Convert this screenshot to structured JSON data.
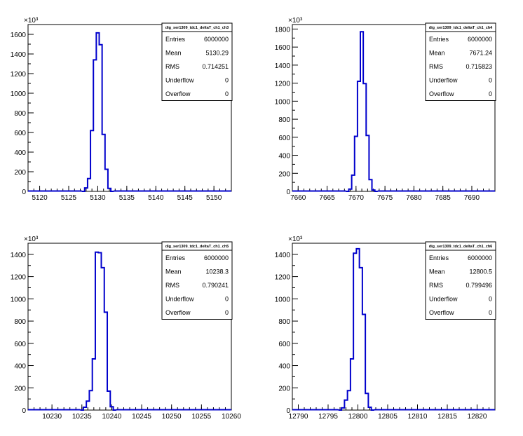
{
  "chart_data": [
    {
      "type": "bar",
      "title": "",
      "exponent_label": "×10³",
      "xlim": [
        5118,
        5153
      ],
      "ylim": [
        0,
        1700
      ],
      "xticks": [
        "5120",
        "5125",
        "5130",
        "5135",
        "5140",
        "5145",
        "5150"
      ],
      "yticks": [
        "0",
        "200",
        "400",
        "600",
        "800",
        "1000",
        "1200",
        "1400",
        "1600"
      ],
      "bin_width": 0.5,
      "bins": [
        {
          "x": 5127.5,
          "y": 0
        },
        {
          "x": 5128.0,
          "y": 35
        },
        {
          "x": 5128.5,
          "y": 130
        },
        {
          "x": 5129.0,
          "y": 620
        },
        {
          "x": 5129.5,
          "y": 1340
        },
        {
          "x": 5130.0,
          "y": 1615
        },
        {
          "x": 5130.5,
          "y": 1495
        },
        {
          "x": 5131.0,
          "y": 580
        },
        {
          "x": 5131.5,
          "y": 225
        },
        {
          "x": 5132.0,
          "y": 30
        },
        {
          "x": 5132.5,
          "y": 0
        }
      ],
      "stats": {
        "name": "dig_ser1309_tdc1_deltaT_ch1_ch3",
        "rows": [
          {
            "label": "Entries",
            "value": "6000000"
          },
          {
            "label": "Mean",
            "value": "5130.29"
          },
          {
            "label": "RMS",
            "value": "0.714251"
          },
          {
            "label": "Underflow",
            "value": "0"
          },
          {
            "label": "Overflow",
            "value": "0"
          }
        ]
      }
    },
    {
      "type": "bar",
      "title": "",
      "exponent_label": "×10³",
      "xlim": [
        7659,
        7694
      ],
      "ylim": [
        0,
        1850
      ],
      "xticks": [
        "7660",
        "7665",
        "7670",
        "7675",
        "7680",
        "7685",
        "7690"
      ],
      "yticks": [
        "0",
        "200",
        "400",
        "600",
        "800",
        "1000",
        "1200",
        "1400",
        "1600",
        "1800"
      ],
      "bin_width": 0.5,
      "bins": [
        {
          "x": 7668.5,
          "y": 0
        },
        {
          "x": 7669.0,
          "y": 25
        },
        {
          "x": 7669.5,
          "y": 180
        },
        {
          "x": 7670.0,
          "y": 610
        },
        {
          "x": 7670.5,
          "y": 1220
        },
        {
          "x": 7671.0,
          "y": 1770
        },
        {
          "x": 7671.5,
          "y": 1195
        },
        {
          "x": 7672.0,
          "y": 620
        },
        {
          "x": 7672.5,
          "y": 130
        },
        {
          "x": 7673.0,
          "y": 15
        },
        {
          "x": 7673.5,
          "y": 0
        }
      ],
      "stats": {
        "name": "dig_ser1309_tdc1_deltaT_ch1_ch4",
        "rows": [
          {
            "label": "Entries",
            "value": "6000000"
          },
          {
            "label": "Mean",
            "value": "7671.24"
          },
          {
            "label": "RMS",
            "value": "0.715823"
          },
          {
            "label": "Underflow",
            "value": "0"
          },
          {
            "label": "Overflow",
            "value": "0"
          }
        ]
      }
    },
    {
      "type": "bar",
      "title": "",
      "exponent_label": "×10³",
      "xlim": [
        10226,
        10260
      ],
      "ylim": [
        0,
        1500
      ],
      "xticks": [
        "10230",
        "10235",
        "10240",
        "10245",
        "10250",
        "10255",
        "10260"
      ],
      "yticks": [
        "0",
        "200",
        "400",
        "600",
        "800",
        "1000",
        "1200",
        "1400"
      ],
      "bin_width": 0.5,
      "bins": [
        {
          "x": 10235.0,
          "y": 0
        },
        {
          "x": 10235.5,
          "y": 25
        },
        {
          "x": 10236.0,
          "y": 80
        },
        {
          "x": 10236.5,
          "y": 175
        },
        {
          "x": 10237.0,
          "y": 460
        },
        {
          "x": 10237.5,
          "y": 1420
        },
        {
          "x": 10238.0,
          "y": 1415
        },
        {
          "x": 10238.5,
          "y": 1280
        },
        {
          "x": 10239.0,
          "y": 880
        },
        {
          "x": 10239.5,
          "y": 170
        },
        {
          "x": 10240.0,
          "y": 30
        },
        {
          "x": 10240.5,
          "y": 0
        }
      ],
      "stats": {
        "name": "dig_ser1309_tdc1_deltaT_ch1_ch5",
        "rows": [
          {
            "label": "Entries",
            "value": "6000000"
          },
          {
            "label": "Mean",
            "value": "10238.3"
          },
          {
            "label": "RMS",
            "value": "0.790241"
          },
          {
            "label": "Underflow",
            "value": "0"
          },
          {
            "label": "Overflow",
            "value": "0"
          }
        ]
      }
    },
    {
      "type": "bar",
      "title": "",
      "exponent_label": "×10³",
      "xlim": [
        12789,
        12823
      ],
      "ylim": [
        0,
        1500
      ],
      "xticks": [
        "12790",
        "12795",
        "12800",
        "12805",
        "12810",
        "12815",
        "12820"
      ],
      "yticks": [
        "0",
        "200",
        "400",
        "600",
        "800",
        "1000",
        "1200",
        "1400"
      ],
      "bin_width": 0.5,
      "bins": [
        {
          "x": 12797.0,
          "y": 0
        },
        {
          "x": 12797.5,
          "y": 20
        },
        {
          "x": 12798.0,
          "y": 90
        },
        {
          "x": 12798.5,
          "y": 175
        },
        {
          "x": 12799.0,
          "y": 460
        },
        {
          "x": 12799.5,
          "y": 1410
        },
        {
          "x": 12800.0,
          "y": 1450
        },
        {
          "x": 12800.5,
          "y": 1280
        },
        {
          "x": 12801.0,
          "y": 860
        },
        {
          "x": 12801.5,
          "y": 150
        },
        {
          "x": 12802.0,
          "y": 25
        },
        {
          "x": 12802.5,
          "y": 0
        }
      ],
      "stats": {
        "name": "dig_ser1309_tdc1_deltaT_ch1_ch6",
        "rows": [
          {
            "label": "Entries",
            "value": "6000000"
          },
          {
            "label": "Mean",
            "value": "12800.5"
          },
          {
            "label": "RMS",
            "value": "0.799496"
          },
          {
            "label": "Underflow",
            "value": "0"
          },
          {
            "label": "Overflow",
            "value": "0"
          }
        ]
      }
    }
  ]
}
